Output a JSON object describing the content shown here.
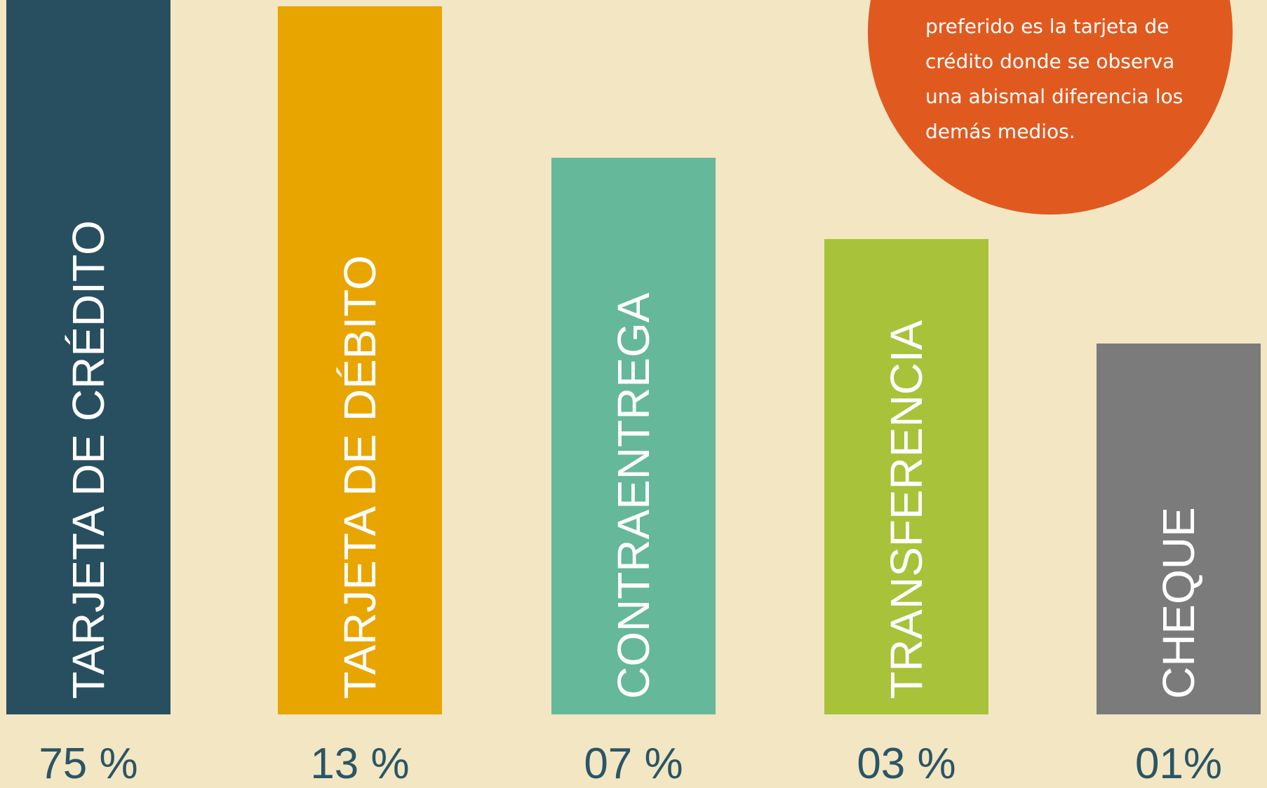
{
  "bars": [
    {
      "label": "TARJETA DE CRÉDITO",
      "value_label": "75 %",
      "color": "#284f5f"
    },
    {
      "label": "TARJETA DE DÉBITO",
      "value_label": "13 %",
      "color": "#e8a500"
    },
    {
      "label": "CONTRAENTREGA",
      "value_label": "07 %",
      "color": "#66b89a"
    },
    {
      "label": "TRANSFERENCIA",
      "value_label": "03 %",
      "color": "#a8c23a"
    },
    {
      "label": "CHEQUE",
      "value_label": "01%",
      "color": "#7b7b7b"
    }
  ],
  "note": {
    "lines": [
      "preferido es la tarjeta de",
      "crédito donde se observa",
      "una abismal diferencia los",
      "demás medios."
    ]
  }
}
